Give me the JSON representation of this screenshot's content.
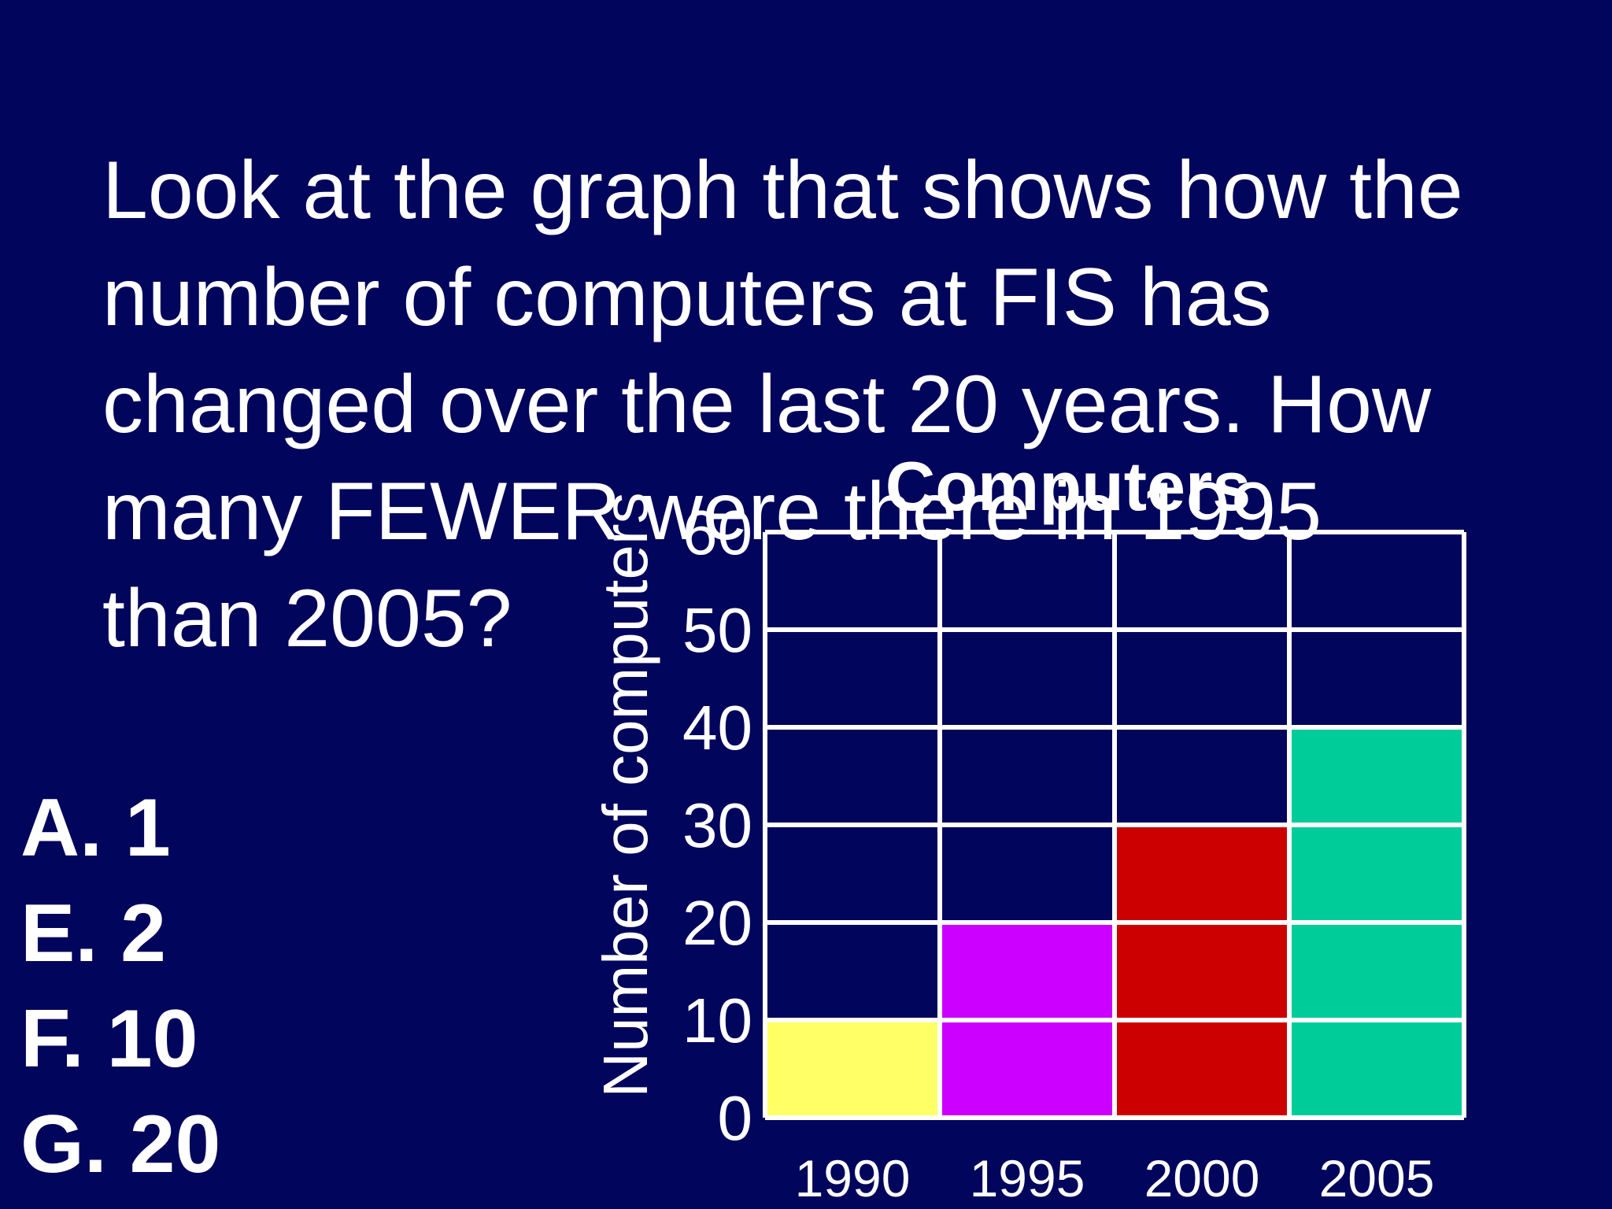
{
  "slide": {
    "question": "Look at the graph that shows how the number of computers at FIS has changed over the last 20 years.  How many FEWER were there in 1995 than 2005?",
    "question_lines": [
      "Look at the graph that shows how the",
      "number of computers at FIS has",
      "changed over the last 20 years.  How",
      "many FEWER were there in 1995",
      "than 2005?"
    ],
    "answers": [
      {
        "letter": "A.",
        "value": "1",
        "text": "A. 1"
      },
      {
        "letter": "E.",
        "value": "2",
        "text": "E. 2"
      },
      {
        "letter": "F.",
        "value": "10",
        "text": "F. 10"
      },
      {
        "letter": "G.",
        "value": "20",
        "text": "G. 20"
      }
    ]
  },
  "chart_data": {
    "type": "bar",
    "title": "Computers",
    "xlabel": "",
    "ylabel": "Number of computers",
    "categories": [
      "1990",
      "1995",
      "2000",
      "2005"
    ],
    "values": [
      10,
      20,
      30,
      40
    ],
    "colors": [
      "#ffff66",
      "#cc00ff",
      "#cc0000",
      "#00cc99"
    ],
    "ylim": [
      0,
      60
    ],
    "yticks": [
      0,
      10,
      20,
      30,
      40,
      50,
      60
    ],
    "ytick_labels": [
      "0",
      "10",
      "20",
      "30",
      "40",
      "50",
      "60"
    ],
    "grid": true,
    "grid_color": "#ffffff",
    "background": "#02055c"
  }
}
